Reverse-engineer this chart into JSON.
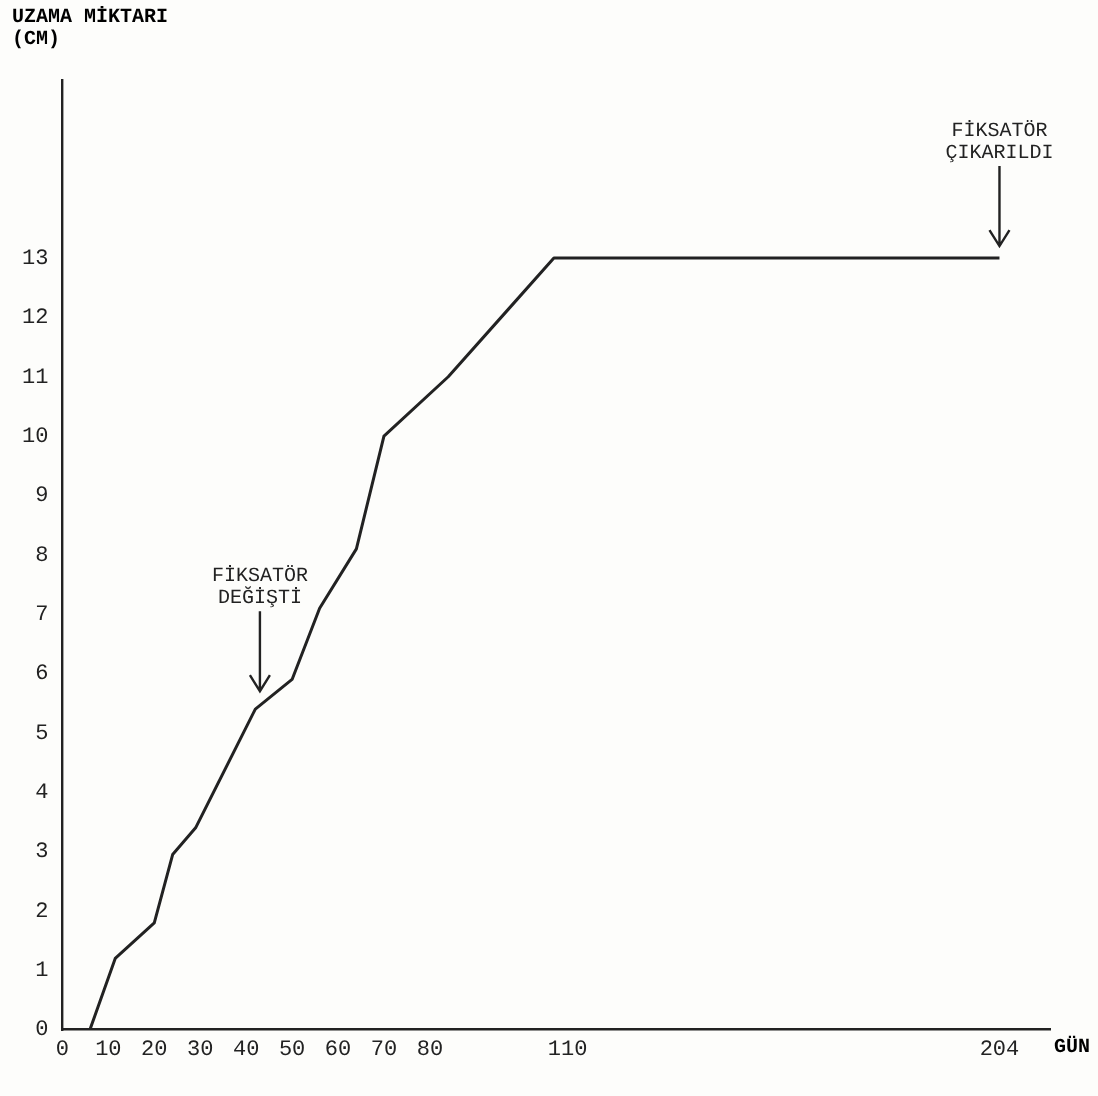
{
  "chart_data": {
    "type": "line",
    "xlabel": "GÜN",
    "ylabel": "UZAMA MİKTARI (CM)",
    "x": [
      6,
      11.5,
      20,
      24,
      29,
      42,
      50,
      56,
      64,
      70,
      84,
      107,
      204
    ],
    "series": [
      {
        "color": "#222222",
        "values": [
          0,
          1.2,
          1.8,
          2.95,
          3.4,
          5.4,
          5.9,
          7.1,
          8.1,
          10,
          11,
          13,
          13
        ]
      }
    ],
    "xlim": [
      0,
      215
    ],
    "xticks": [
      0,
      10,
      20,
      30,
      40,
      50,
      60,
      70,
      80,
      110,
      204
    ],
    "ylim": [
      0,
      16
    ],
    "yticks": [
      0,
      1,
      2,
      3,
      4,
      5,
      6,
      7,
      8,
      9,
      10,
      11,
      12,
      13
    ],
    "grid": false,
    "legend": false,
    "marker": "none",
    "line_style": "solid",
    "annotations": [
      {
        "text": "FİKSATÖR DEĞİŞTİ",
        "x": 43,
        "y": 5.5
      },
      {
        "text": "FİKSATÖR ÇIKARILDI",
        "x": 204,
        "y": 13
      }
    ]
  }
}
